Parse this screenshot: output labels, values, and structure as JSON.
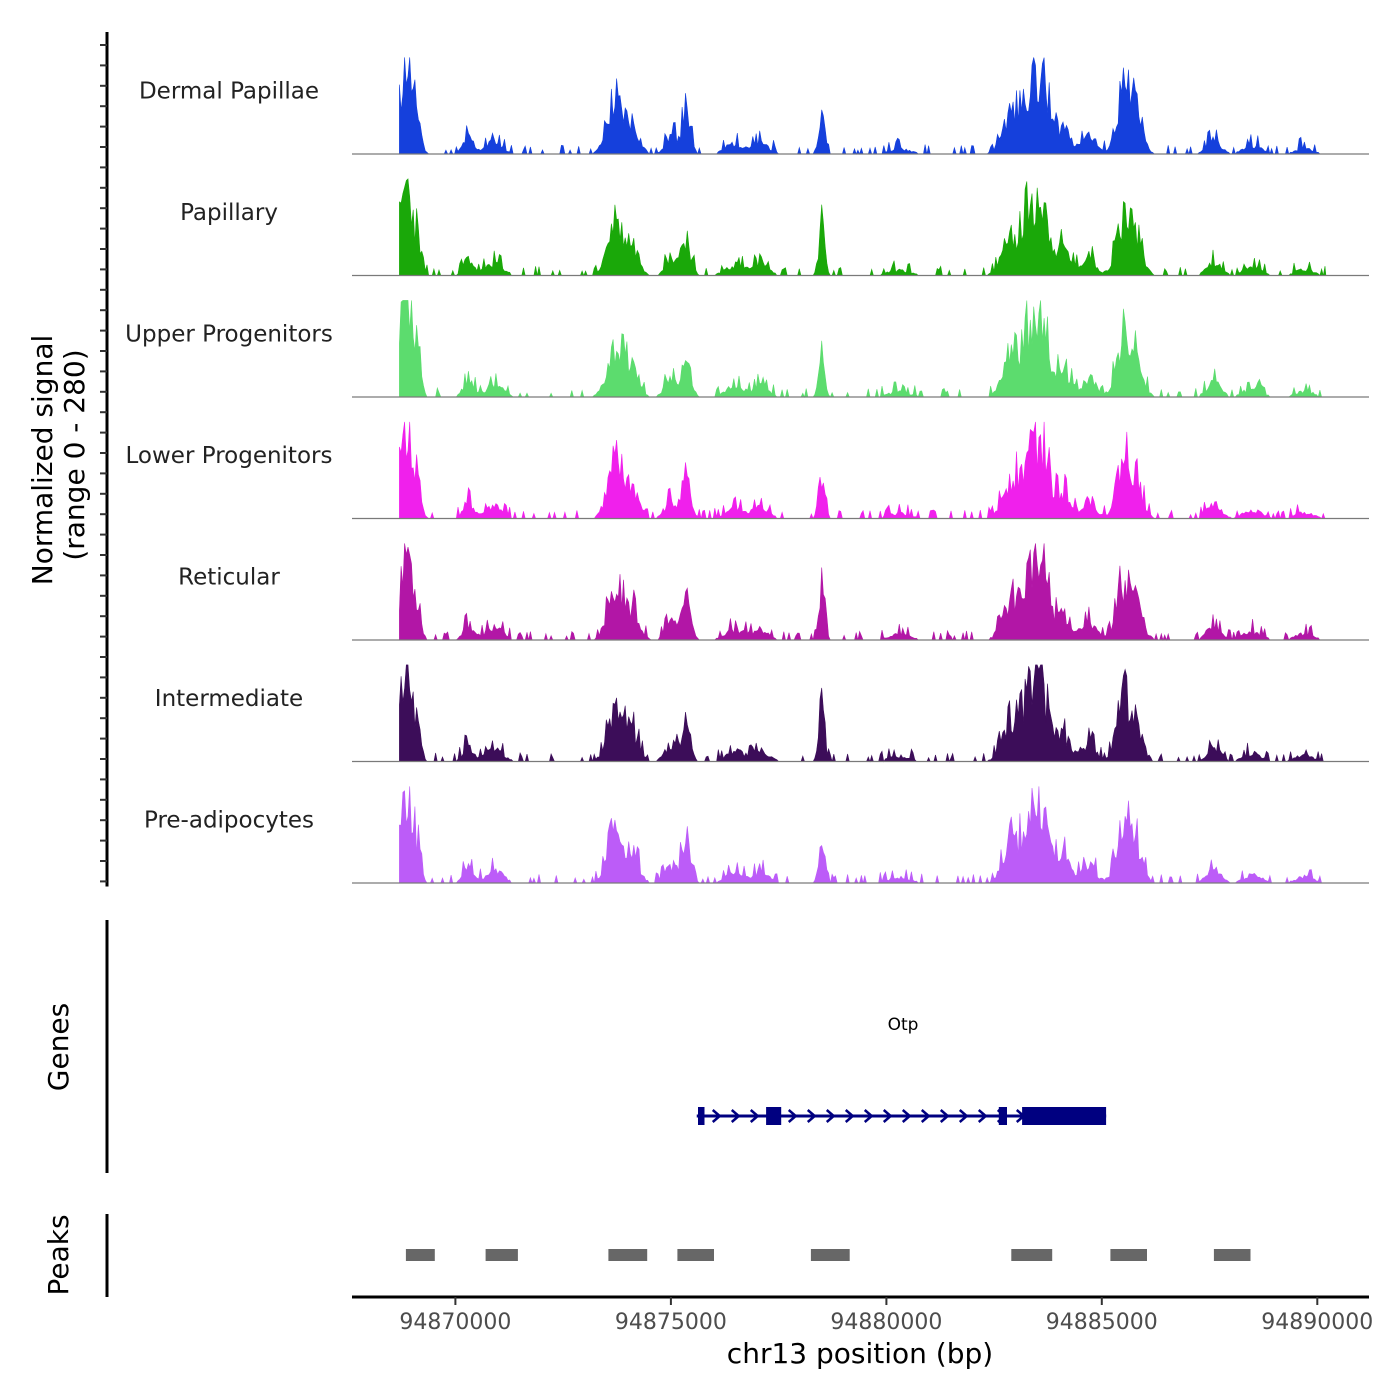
{
  "chart_data": {
    "type": "area",
    "title": "",
    "chromosome": "chr13",
    "xlabel": "chr13 position (bp)",
    "ylabel_line1": "Normalized signal",
    "ylabel_line2": "(range 0 - 280)",
    "y_range": [
      0,
      280
    ],
    "xlim": [
      94867600,
      94891200
    ],
    "x_ticks": [
      94870000,
      94875000,
      94880000,
      94885000,
      94890000
    ],
    "x_tick_labels": [
      "94870000",
      "94875000",
      "94880000",
      "94885000",
      "94890000"
    ],
    "series": [
      {
        "name": "Dermal Papillae",
        "color": "#1540dc",
        "seed": 11
      },
      {
        "name": "Papillary",
        "color": "#1aa809",
        "seed": 23
      },
      {
        "name": "Upper Progenitors",
        "color": "#5cdc6e",
        "seed": 37
      },
      {
        "name": "Lower Progenitors",
        "color": "#f020ec",
        "seed": 41
      },
      {
        "name": "Reticular",
        "color": "#b216a6",
        "seed": 53
      },
      {
        "name": "Intermediate",
        "color": "#3c0d59",
        "seed": 67
      },
      {
        "name": "Pre-adipocytes",
        "color": "#bc5cf8",
        "seed": 79
      }
    ],
    "peak_regions": [
      [
        94868800,
        94870600
      ],
      [
        94873300,
        94875000
      ],
      [
        94878100,
        94878900
      ],
      [
        94882700,
        94884000
      ],
      [
        94885200,
        94885900
      ]
    ],
    "genes_panel": {
      "label": "Genes",
      "gene": {
        "name": "Otp",
        "color": "#000080",
        "start": 94875600,
        "end": 94885100,
        "strand": "+",
        "exons": [
          [
            94875630,
            94875780
          ],
          [
            94877210,
            94877560
          ],
          [
            94882610,
            94882800
          ],
          [
            94883150,
            94885100
          ]
        ]
      }
    },
    "peaks_panel": {
      "label": "Peaks",
      "color": "#676767",
      "peaks": [
        [
          94868850,
          94869520
        ],
        [
          94870700,
          94871450
        ],
        [
          94873550,
          94874450
        ],
        [
          94875150,
          94876000
        ],
        [
          94878250,
          94879150
        ],
        [
          94882900,
          94883850
        ],
        [
          94885200,
          94886050
        ],
        [
          94887600,
          94888450
        ]
      ]
    }
  }
}
